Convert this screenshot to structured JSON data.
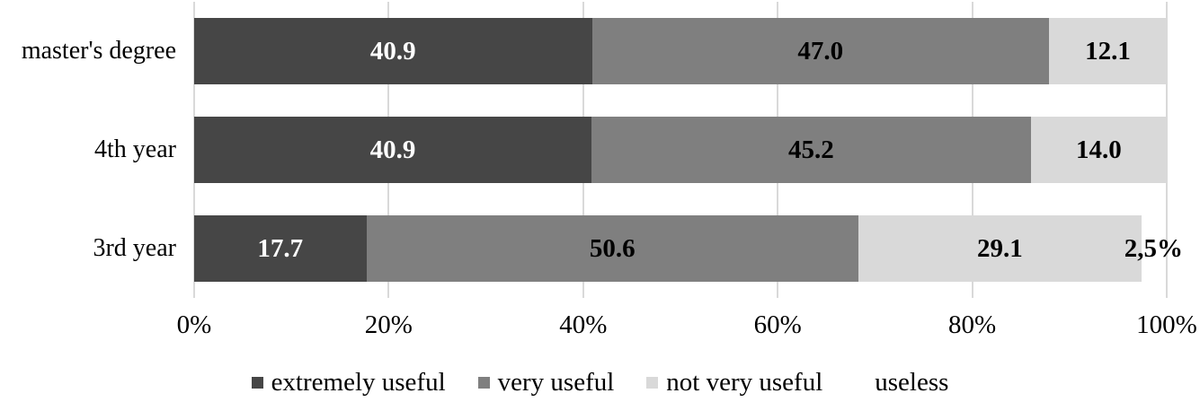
{
  "colors": {
    "background": "#ffffff",
    "gridline": "#d9d9d9",
    "text": "#000000"
  },
  "chart_data": {
    "type": "bar",
    "subtype": "horizontal-stacked",
    "categories": [
      "master's degree",
      "4th year",
      "3rd year"
    ],
    "series": [
      {
        "name": "extremely useful",
        "color": "#464646",
        "label_color": "#ffffff",
        "values": [
          40.9,
          40.9,
          17.7
        ],
        "labels": [
          "40.9",
          "40.9",
          "17.7"
        ]
      },
      {
        "name": "very useful",
        "color": "#7f7f7f",
        "label_color": "#000000",
        "values": [
          47.0,
          45.2,
          50.6
        ],
        "labels": [
          "47.0",
          "45.2",
          "50.6"
        ]
      },
      {
        "name": "not very useful",
        "color": "#d9d9d9",
        "label_color": "#000000",
        "values": [
          12.1,
          14.0,
          29.1
        ],
        "labels": [
          "12.1",
          "14.0",
          "29.1"
        ]
      },
      {
        "name": "useless",
        "color": "#ffffff",
        "label_color": "#000000",
        "values": [
          0,
          0,
          2.5
        ],
        "labels": [
          "",
          "",
          "2,5%"
        ]
      }
    ],
    "x_ticks": [
      "0%",
      "20%",
      "40%",
      "60%",
      "80%",
      "100%"
    ],
    "x_tick_values": [
      0,
      20,
      40,
      60,
      80,
      100
    ],
    "xlim": [
      0,
      100
    ],
    "grid": true,
    "legend": [
      "extremely useful",
      "very useful",
      "not very useful",
      "useless"
    ],
    "legend_position": "bottom"
  }
}
